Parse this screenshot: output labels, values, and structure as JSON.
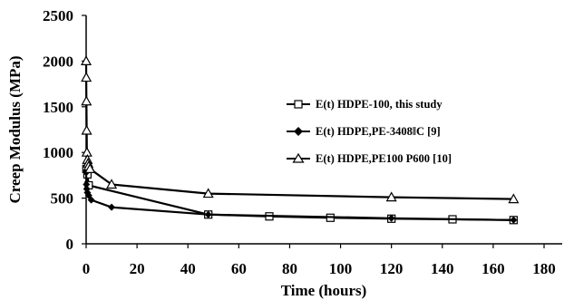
{
  "chart_data": {
    "type": "line",
    "title": "",
    "xlabel": "Time (hours)",
    "ylabel": "Creep Modulus (MPa)",
    "xlim": [
      0,
      180
    ],
    "ylim": [
      0,
      2500
    ],
    "xticks": [
      0,
      20,
      40,
      60,
      80,
      100,
      120,
      140,
      160,
      180
    ],
    "yticks": [
      0,
      500,
      1000,
      1500,
      2000,
      2500
    ],
    "grid": false,
    "legend_position": "right",
    "series": [
      {
        "name": "E(t) HDPE-100, this study",
        "marker": "square",
        "x": [
          0.1,
          0.5,
          1,
          48,
          72,
          96,
          120,
          144,
          168
        ],
        "y": [
          820,
          760,
          640,
          320,
          300,
          285,
          275,
          268,
          260
        ]
      },
      {
        "name": "E(t) HDPE,PE-3408‖C [9]",
        "marker": "diamond",
        "x": [
          0.01,
          0.1,
          0.25,
          0.5,
          1,
          2,
          10,
          48,
          120,
          168
        ],
        "y": [
          780,
          650,
          600,
          560,
          530,
          480,
          400,
          320,
          280,
          260
        ]
      },
      {
        "name": "E(t) HDPE,PE100 P600 [10]",
        "marker": "triangle",
        "x": [
          0.01,
          0.05,
          0.1,
          0.2,
          0.3,
          0.5,
          0.75,
          1,
          1.5,
          10,
          48,
          120,
          168
        ],
        "y": [
          2000,
          1820,
          1560,
          1240,
          1000,
          920,
          880,
          850,
          820,
          650,
          550,
          510,
          490
        ]
      }
    ]
  }
}
